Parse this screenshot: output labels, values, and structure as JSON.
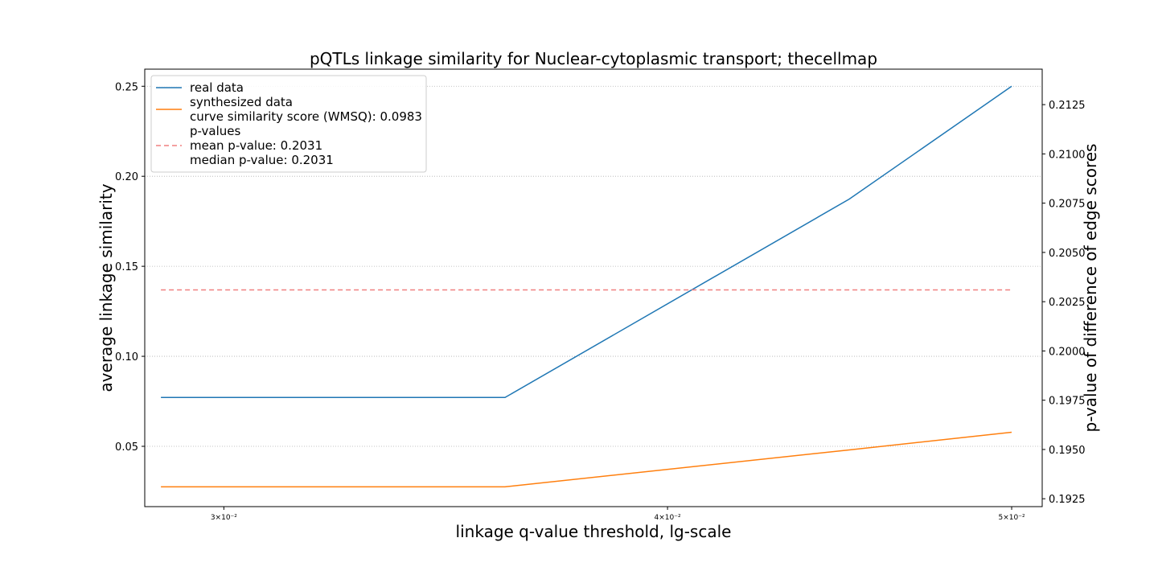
{
  "chart_data": {
    "type": "line",
    "title": "pQTLs linkage similarity for Nuclear-cytoplasmic transport; thecellmap",
    "xlabel": "linkage q-value threshold, lg-scale",
    "ylabel_left": "average linkage similarity",
    "ylabel_right": "p-value of difference of edge scores",
    "x_scale": "log",
    "x": [
      0.0288,
      0.036,
      0.045,
      0.05
    ],
    "xlim": [
      0.0285,
      0.051
    ],
    "x_ticks": [
      {
        "value": 0.03,
        "label": "3×10⁻²"
      },
      {
        "value": 0.04,
        "label": "4×10⁻²"
      },
      {
        "value": 0.05,
        "label": "5×10⁻²"
      }
    ],
    "ylim_left": [
      0.0165,
      0.2595
    ],
    "y_ticks_left": [
      {
        "value": 0.05,
        "label": "0.05"
      },
      {
        "value": 0.1,
        "label": "0.10"
      },
      {
        "value": 0.15,
        "label": "0.15"
      },
      {
        "value": 0.2,
        "label": "0.20"
      },
      {
        "value": 0.25,
        "label": "0.25"
      }
    ],
    "ylim_right": [
      0.1921,
      0.2143
    ],
    "y_ticks_right": [
      {
        "value": 0.1925,
        "label": "0.1925"
      },
      {
        "value": 0.195,
        "label": "0.1950"
      },
      {
        "value": 0.1975,
        "label": "0.1975"
      },
      {
        "value": 0.2,
        "label": "0.2000"
      },
      {
        "value": 0.2025,
        "label": "0.2025"
      },
      {
        "value": 0.205,
        "label": "0.2050"
      },
      {
        "value": 0.2075,
        "label": "0.2075"
      },
      {
        "value": 0.21,
        "label": "0.2100"
      },
      {
        "value": 0.2125,
        "label": "0.2125"
      }
    ],
    "grid": true,
    "legend_position": "top-left",
    "series": [
      {
        "name": "real data",
        "axis": "left",
        "color": "#1f77b4",
        "style": "solid",
        "values": [
          0.0771,
          0.0771,
          0.1873,
          0.25
        ]
      },
      {
        "name": "synthesized data",
        "axis": "left",
        "color": "#ff7f0e",
        "style": "solid",
        "values": [
          0.0275,
          0.0275,
          0.048,
          0.0578
        ]
      },
      {
        "name": "p-values",
        "axis": "right",
        "color": "#f08080",
        "style": "dashed",
        "values": [
          0.2031,
          0.2031,
          0.2031,
          0.2031
        ]
      }
    ],
    "legend": [
      {
        "series": 0,
        "lines": [
          "real data"
        ]
      },
      {
        "series": 1,
        "lines": [
          "synthesized data",
          "curve similarity score (WMSQ): 0.0983"
        ]
      },
      {
        "series": 2,
        "lines": [
          "p-values",
          "mean p-value: 0.2031",
          "median p-value: 0.2031"
        ]
      }
    ]
  }
}
